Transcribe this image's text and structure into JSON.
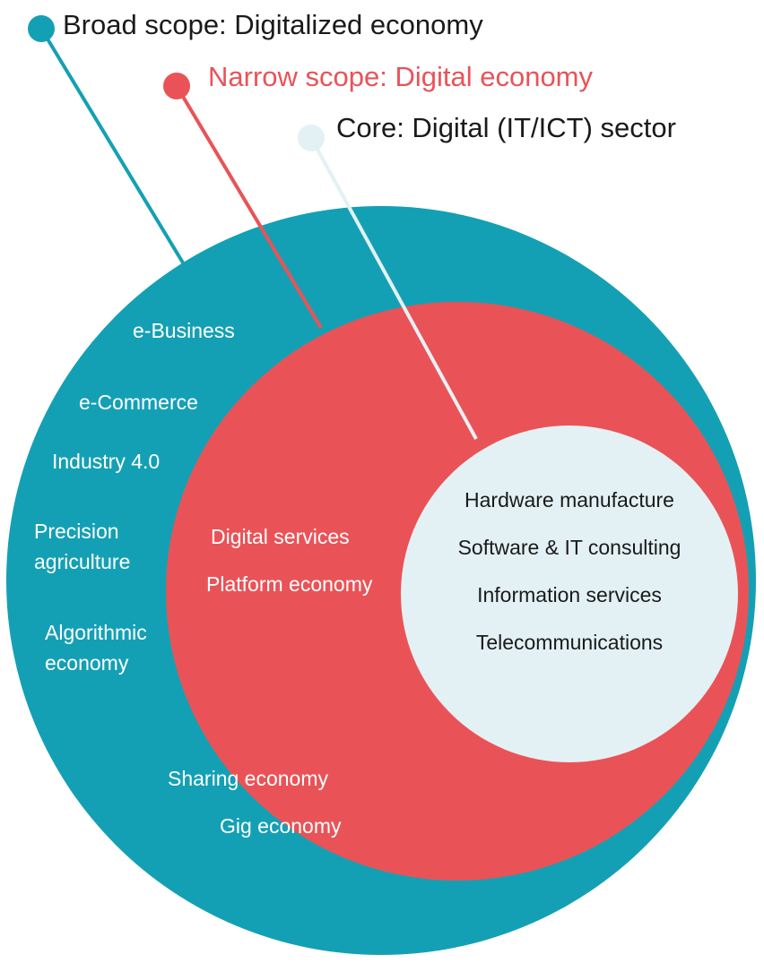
{
  "legend": {
    "broad": "Broad scope: Digitalized economy",
    "narrow": "Narrow scope: Digital economy",
    "core": "Core: Digital (IT/ICT) sector"
  },
  "broad_items": {
    "e_business": "e-Business",
    "e_commerce": "e-Commerce",
    "industry40": "Industry 4.0",
    "precision_1": "Precision",
    "precision_2": "agriculture",
    "algorithmic_1": "Algorithmic",
    "algorithmic_2": "economy",
    "sharing": "Sharing economy",
    "gig": "Gig economy"
  },
  "narrow_items": {
    "digital_services": "Digital services",
    "platform": "Platform economy"
  },
  "core_items": {
    "hardware": "Hardware manufacture",
    "software": "Software & IT consulting",
    "information": "Information services",
    "telecom": "Telecommunications"
  },
  "colors": {
    "broad": "#14a0b4",
    "narrow": "#e95357",
    "core": "#e3f1f4",
    "broad_text": "#1a1a1a",
    "narrow_text": "#e95357",
    "core_text": "#1a1a1a"
  }
}
